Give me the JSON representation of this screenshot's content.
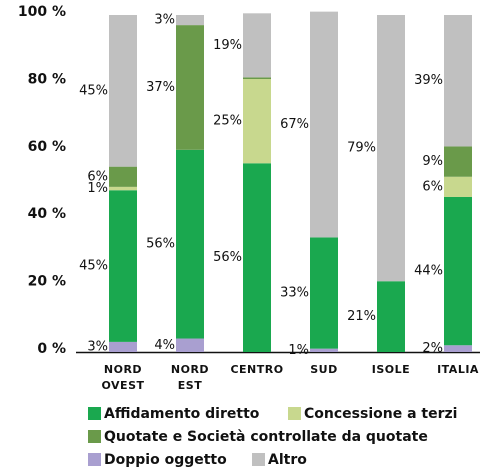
{
  "chart_data": {
    "type": "stacked_bar",
    "categories": [
      "NORD OVEST",
      "NORD EST",
      "CENTRO",
      "SUD",
      "ISOLE",
      "ITALIA"
    ],
    "series": [
      {
        "name": "Doppio oggetto",
        "color": "#a99fd0",
        "values": [
          3,
          4,
          0,
          1,
          0,
          2
        ],
        "value_labels": [
          "3%",
          "4%",
          null,
          "1%",
          null,
          "2%"
        ]
      },
      {
        "name": "Affidamento diretto",
        "color": "#1aa84f",
        "values": [
          45,
          56,
          56,
          33,
          21,
          44
        ],
        "value_labels": [
          "45%",
          "56%",
          "56%",
          "33%",
          "21%",
          "44%"
        ]
      },
      {
        "name": "Concessione a terzi",
        "color": "#c8d88e",
        "values": [
          1,
          0,
          25,
          0,
          0,
          6
        ],
        "value_labels": [
          "1%",
          null,
          "25%",
          null,
          null,
          "6%"
        ]
      },
      {
        "name": "Quotate e Società controllate da quotate",
        "color": "#6a9a4a",
        "values": [
          6,
          37,
          0.5,
          0,
          0,
          9
        ],
        "value_labels": [
          "6%",
          "37%",
          null,
          null,
          null,
          "9%"
        ]
      },
      {
        "name": "Altro",
        "color": "#c0c0c0",
        "values": [
          45,
          3,
          19,
          67,
          79,
          39
        ],
        "value_labels": [
          "45%",
          "3%",
          "19%",
          "67%",
          "79%",
          "39%"
        ]
      }
    ],
    "ylim": [
      0,
      100
    ],
    "yticks": [
      {
        "value": 0,
        "label": "0 %"
      },
      {
        "value": 20,
        "label": "20 %"
      },
      {
        "value": 40,
        "label": "40 %"
      },
      {
        "value": 60,
        "label": "60 %"
      },
      {
        "value": 80,
        "label": "80 %"
      },
      {
        "value": 100,
        "label": "100 %"
      }
    ],
    "grid": false
  }
}
